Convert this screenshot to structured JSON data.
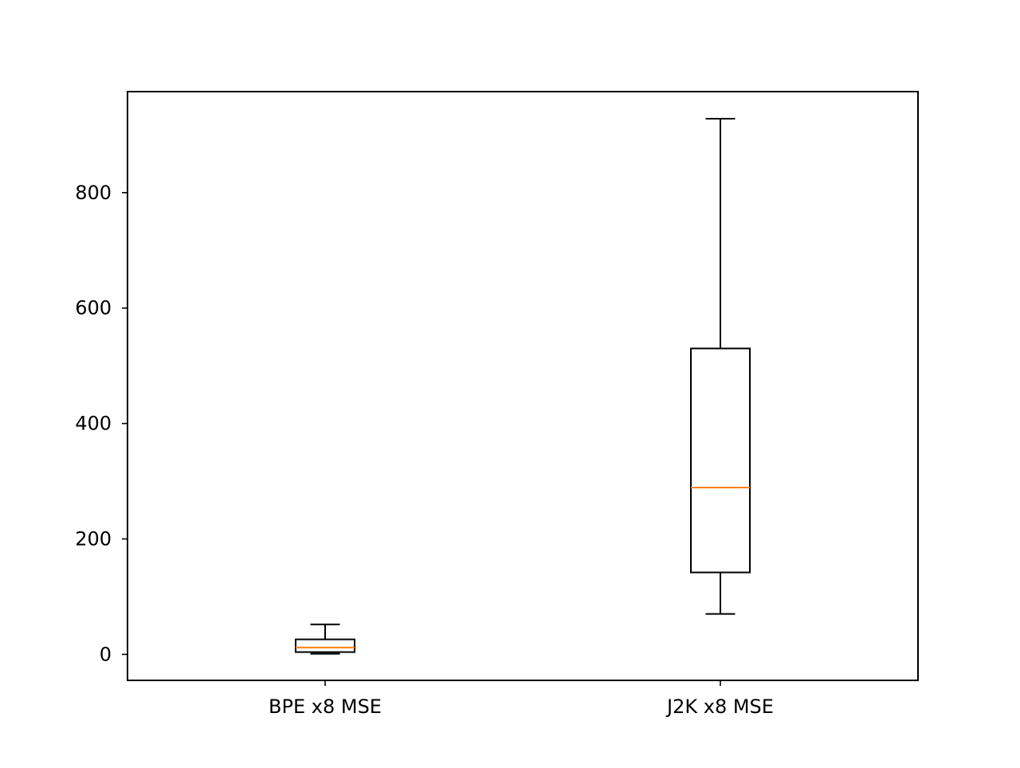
{
  "chart_data": {
    "type": "box",
    "title": "",
    "xlabel": "",
    "ylabel": "",
    "categories": [
      "BPE x8 MSE",
      "J2K x8 MSE"
    ],
    "boxes": [
      {
        "label": "BPE x8 MSE",
        "whisker_low": 1,
        "q1": 4,
        "median": 12,
        "q3": 26,
        "whisker_high": 52
      },
      {
        "label": "J2K x8 MSE",
        "whisker_low": 70,
        "q1": 142,
        "median": 289,
        "q3": 530,
        "whisker_high": 928
      }
    ],
    "ylim": [
      -45,
      975
    ],
    "yticks": [
      0,
      200,
      400,
      600,
      800
    ],
    "ytick_labels": [
      "0",
      "200",
      "400",
      "600",
      "800"
    ],
    "grid": false,
    "legend": "none",
    "colors": {
      "box": "#000000",
      "median": "#ff7f0e",
      "axes": "#000000"
    }
  }
}
